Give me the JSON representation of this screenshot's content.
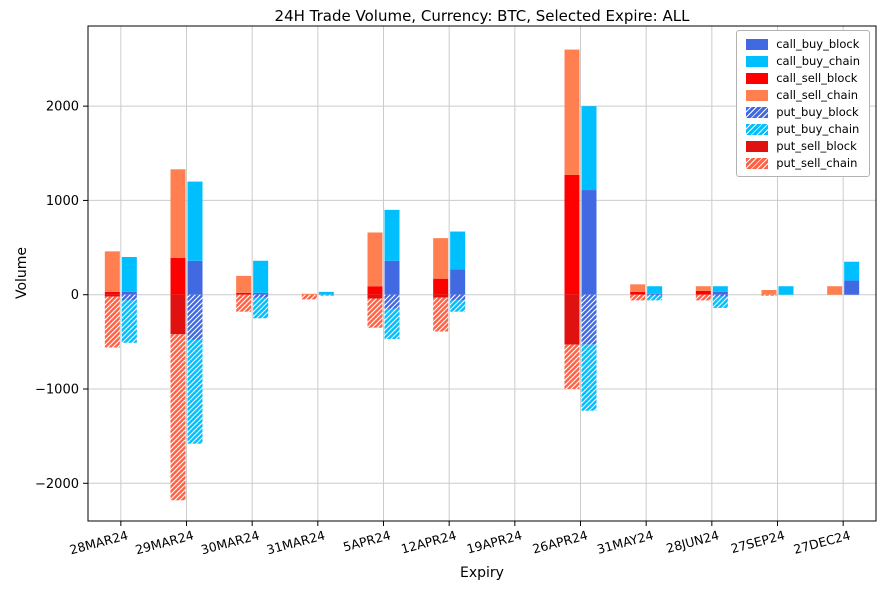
{
  "chart_data": {
    "type": "bar",
    "title": "24H Trade Volume, Currency: BTC, Selected Expire: ALL",
    "xlabel": "Expiry",
    "ylabel": "Volume",
    "ylim": [
      -2400,
      2850
    ],
    "yticks": [
      -2000,
      -1000,
      0,
      1000,
      2000
    ],
    "grid": true,
    "legend_position": "upper right",
    "categories": [
      "28MAR24",
      "29MAR24",
      "30MAR24",
      "31MAR24",
      "5APR24",
      "12APR24",
      "19APR24",
      "26APR24",
      "31MAY24",
      "28JUN24",
      "27SEP24",
      "27DEC24"
    ],
    "series": [
      {
        "name": "call_buy_block",
        "color": "#4169e1",
        "hatch": false,
        "bar": "buy",
        "values": [
          30,
          360,
          20,
          0,
          360,
          270,
          0,
          1110,
          10,
          30,
          0,
          150
        ]
      },
      {
        "name": "call_buy_chain",
        "color": "#00bfff",
        "hatch": false,
        "bar": "buy",
        "values": [
          370,
          840,
          340,
          30,
          540,
          400,
          0,
          890,
          80,
          60,
          90,
          200
        ]
      },
      {
        "name": "call_sell_block",
        "color": "#ff0000",
        "hatch": false,
        "bar": "sell",
        "values": [
          30,
          390,
          20,
          0,
          90,
          170,
          0,
          1270,
          30,
          40,
          0,
          0
        ]
      },
      {
        "name": "call_sell_chain",
        "color": "#ff7f50",
        "hatch": false,
        "bar": "sell",
        "values": [
          430,
          940,
          180,
          10,
          570,
          430,
          0,
          1330,
          80,
          50,
          50,
          90
        ]
      },
      {
        "name": "put_buy_block",
        "color": "#4169e1",
        "hatch": true,
        "bar": "buy",
        "values": [
          -60,
          -480,
          -30,
          0,
          -150,
          -60,
          0,
          -530,
          -10,
          -20,
          0,
          0
        ]
      },
      {
        "name": "put_buy_chain",
        "color": "#00bfff",
        "hatch": true,
        "bar": "buy",
        "values": [
          -450,
          -1100,
          -220,
          -10,
          -320,
          -120,
          0,
          -700,
          -50,
          -120,
          0,
          0
        ]
      },
      {
        "name": "put_sell_block",
        "color": "#e01111",
        "hatch": false,
        "bar": "sell",
        "values": [
          -20,
          -420,
          0,
          0,
          -40,
          -30,
          0,
          -530,
          0,
          0,
          0,
          0
        ]
      },
      {
        "name": "put_sell_chain",
        "color": "#ff6347",
        "hatch": true,
        "bar": "sell",
        "values": [
          -540,
          -1760,
          -180,
          -50,
          -310,
          -360,
          0,
          -470,
          -60,
          -60,
          -10,
          0
        ]
      }
    ]
  }
}
